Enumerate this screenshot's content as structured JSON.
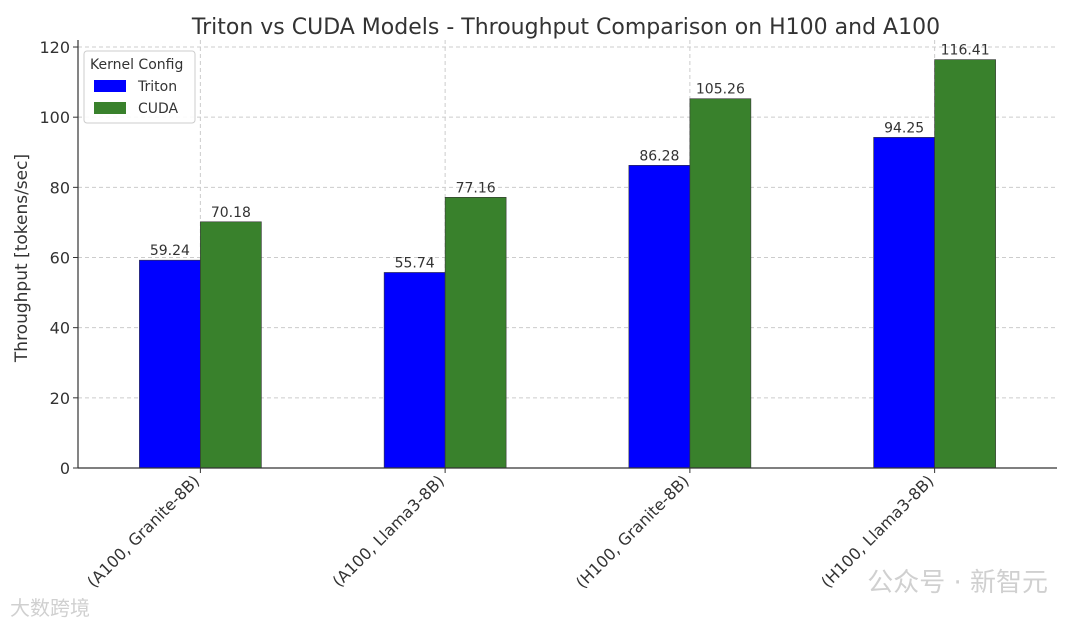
{
  "chart_data": {
    "type": "bar",
    "title": "Triton vs CUDA Models - Throughput Comparison on H100 and A100",
    "xlabel": "",
    "ylabel": "Throughput [tokens/sec]",
    "categories": [
      "(A100, Granite-8B)",
      "(A100, Llama3-8B)",
      "(H100, Granite-8B)",
      "(H100, Llama3-8B)"
    ],
    "series": [
      {
        "name": "Triton",
        "values": [
          59.24,
          55.74,
          86.28,
          94.25
        ],
        "color": "#0000ff"
      },
      {
        "name": "CUDA",
        "values": [
          70.18,
          77.16,
          105.26,
          116.41
        ],
        "color": "#39812c"
      }
    ],
    "data_labels": [
      [
        "59.24",
        "55.74",
        "86.28",
        "94.25"
      ],
      [
        "70.18",
        "77.16",
        "105.26",
        "116.41"
      ]
    ],
    "yticks": [
      "0",
      "20",
      "40",
      "60",
      "80",
      "100",
      "120"
    ],
    "ylim": [
      0,
      122
    ],
    "grid": true,
    "legend": {
      "title": "Kernel Config",
      "placement": "top-left"
    }
  },
  "watermarks": {
    "left": "大数跨境",
    "right": "公众号 · 新智元"
  }
}
